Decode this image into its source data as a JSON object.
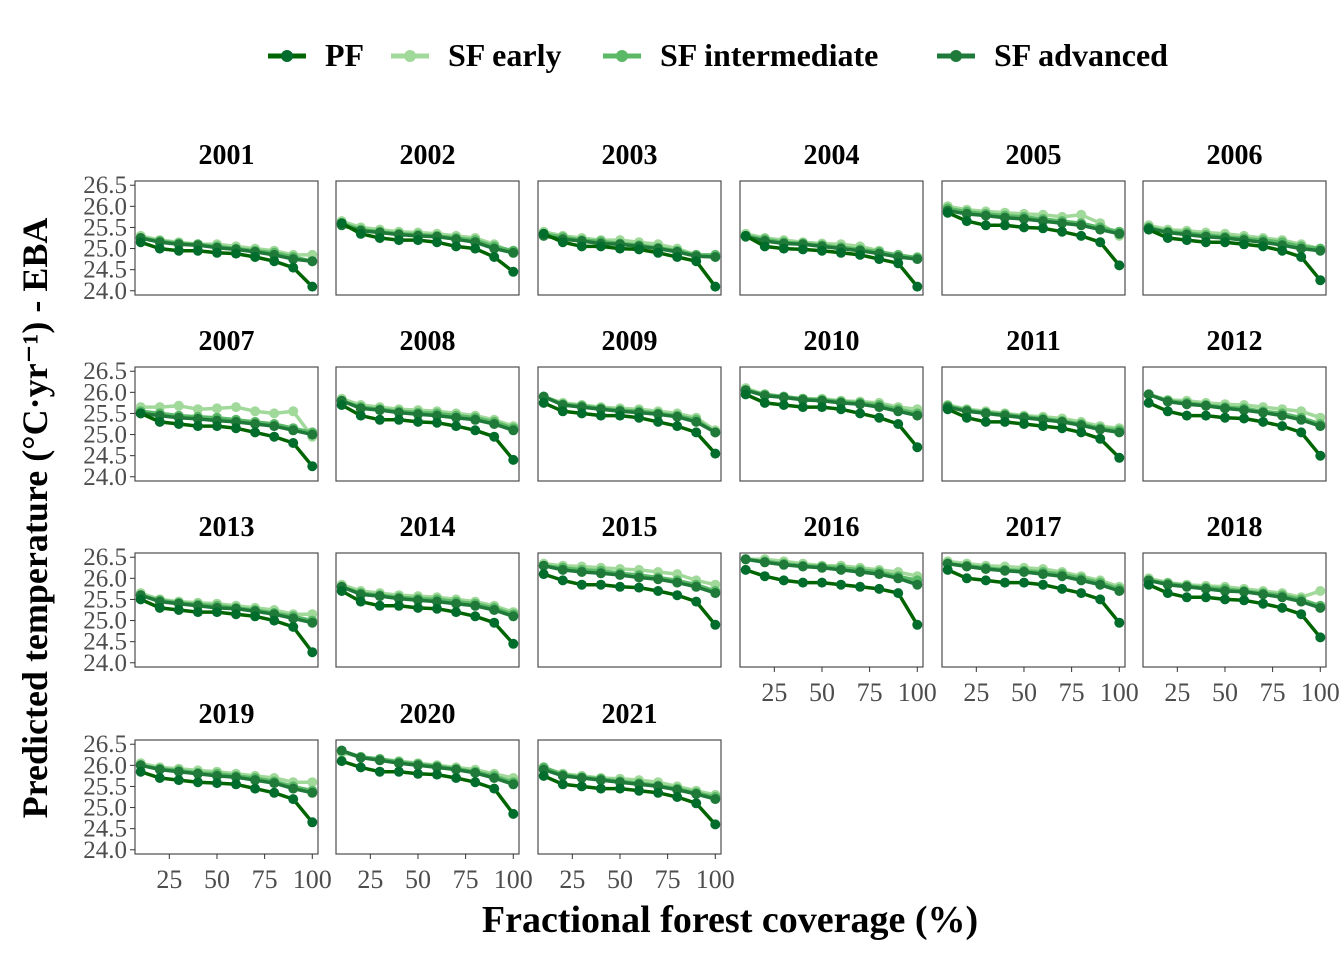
{
  "chart_data": {
    "type": "line",
    "xlabel": "Fractional forest coverage (%)",
    "ylabel": "Predicted temperature (°C·yr⁻¹) - EBA",
    "xlim": [
      7,
      103
    ],
    "ylim": [
      23.9,
      26.6
    ],
    "x_ticks": [
      25,
      50,
      75,
      100
    ],
    "y_ticks": [
      "24.0",
      "24.5",
      "25.0",
      "25.5",
      "26.0",
      "26.5"
    ],
    "grid": false,
    "legend_position": "top",
    "x": [
      10,
      20,
      30,
      40,
      50,
      60,
      70,
      80,
      90,
      100
    ],
    "series": [
      {
        "name": "PF",
        "color": "#006d2c",
        "line_color": "#006400",
        "key": "pf"
      },
      {
        "name": "SF early",
        "color": "#a1d99b",
        "line_color": "#a1d99b",
        "key": "early"
      },
      {
        "name": "SF intermediate",
        "color": "#5ab867",
        "line_color": "#5ab867",
        "key": "inter"
      },
      {
        "name": "SF advanced",
        "color": "#1f7a3a",
        "line_color": "#1f7a3a",
        "key": "adv"
      }
    ],
    "panels": [
      {
        "year": "2001",
        "pf": [
          25.15,
          25.0,
          24.95,
          24.95,
          24.9,
          24.88,
          24.8,
          24.7,
          24.55,
          24.1
        ],
        "early": [
          25.3,
          25.2,
          25.15,
          25.1,
          25.1,
          25.05,
          25.0,
          24.95,
          24.85,
          24.85
        ],
        "inter": [
          25.25,
          25.18,
          25.12,
          25.1,
          25.05,
          25.0,
          24.95,
          24.9,
          24.8,
          24.7
        ],
        "adv": [
          25.25,
          25.15,
          25.1,
          25.08,
          25.02,
          24.98,
          24.92,
          24.85,
          24.75,
          24.7
        ]
      },
      {
        "year": "2002",
        "pf": [
          25.6,
          25.35,
          25.25,
          25.2,
          25.2,
          25.15,
          25.05,
          25.0,
          24.8,
          24.45
        ],
        "early": [
          25.65,
          25.5,
          25.45,
          25.4,
          25.38,
          25.35,
          25.3,
          25.25,
          25.1,
          24.9
        ],
        "inter": [
          25.6,
          25.45,
          25.4,
          25.35,
          25.33,
          25.3,
          25.25,
          25.2,
          25.05,
          24.95
        ],
        "adv": [
          25.55,
          25.42,
          25.38,
          25.33,
          25.3,
          25.28,
          25.22,
          25.15,
          25.0,
          24.9
        ]
      },
      {
        "year": "2003",
        "pf": [
          25.35,
          25.15,
          25.05,
          25.05,
          25.0,
          24.98,
          24.9,
          24.8,
          24.7,
          24.1
        ],
        "early": [
          25.4,
          25.3,
          25.25,
          25.2,
          25.2,
          25.15,
          25.1,
          25.0,
          24.85,
          24.8
        ],
        "inter": [
          25.35,
          25.27,
          25.2,
          25.17,
          25.12,
          25.08,
          25.02,
          24.95,
          24.85,
          24.85
        ],
        "adv": [
          25.3,
          25.22,
          25.18,
          25.12,
          25.1,
          25.05,
          25.0,
          24.92,
          24.82,
          24.8
        ]
      },
      {
        "year": "2004",
        "pf": [
          25.3,
          25.05,
          25.0,
          24.98,
          24.95,
          24.9,
          24.85,
          24.75,
          24.65,
          24.1
        ],
        "early": [
          25.35,
          25.25,
          25.2,
          25.15,
          25.12,
          25.1,
          25.05,
          24.95,
          24.8,
          24.8
        ],
        "inter": [
          25.3,
          25.22,
          25.15,
          25.12,
          25.08,
          25.03,
          24.98,
          24.92,
          24.85,
          24.78
        ],
        "adv": [
          25.28,
          25.18,
          25.12,
          25.1,
          25.05,
          25.0,
          24.95,
          24.88,
          24.8,
          24.75
        ]
      },
      {
        "year": "2005",
        "pf": [
          25.85,
          25.65,
          25.55,
          25.55,
          25.5,
          25.48,
          25.4,
          25.3,
          25.15,
          24.6
        ],
        "early": [
          26.0,
          25.92,
          25.88,
          25.85,
          25.82,
          25.8,
          25.75,
          25.8,
          25.6,
          25.3
        ],
        "inter": [
          25.95,
          25.87,
          25.82,
          25.78,
          25.75,
          25.7,
          25.65,
          25.6,
          25.5,
          25.4
        ],
        "adv": [
          25.9,
          25.82,
          25.78,
          25.73,
          25.7,
          25.65,
          25.6,
          25.55,
          25.45,
          25.35
        ]
      },
      {
        "year": "2006",
        "pf": [
          25.45,
          25.25,
          25.2,
          25.15,
          25.15,
          25.1,
          25.05,
          24.95,
          24.8,
          24.25
        ],
        "early": [
          25.55,
          25.45,
          25.42,
          25.38,
          25.35,
          25.3,
          25.25,
          25.2,
          25.1,
          25.0
        ],
        "inter": [
          25.5,
          25.4,
          25.37,
          25.32,
          25.28,
          25.24,
          25.2,
          25.15,
          25.05,
          25.0
        ],
        "adv": [
          25.48,
          25.38,
          25.33,
          25.28,
          25.25,
          25.2,
          25.15,
          25.08,
          25.0,
          24.95
        ]
      },
      {
        "year": "2007",
        "pf": [
          25.5,
          25.3,
          25.25,
          25.2,
          25.2,
          25.15,
          25.05,
          24.95,
          24.8,
          24.25
        ],
        "early": [
          25.65,
          25.65,
          25.68,
          25.6,
          25.62,
          25.65,
          25.55,
          25.5,
          25.55,
          24.95
        ],
        "inter": [
          25.55,
          25.5,
          25.45,
          25.42,
          25.4,
          25.35,
          25.3,
          25.25,
          25.15,
          25.05
        ],
        "adv": [
          25.5,
          25.45,
          25.4,
          25.37,
          25.33,
          25.3,
          25.25,
          25.2,
          25.1,
          25.0
        ]
      },
      {
        "year": "2008",
        "pf": [
          25.7,
          25.45,
          25.35,
          25.35,
          25.3,
          25.28,
          25.2,
          25.1,
          24.95,
          24.4
        ],
        "early": [
          25.85,
          25.7,
          25.65,
          25.6,
          25.58,
          25.55,
          25.5,
          25.45,
          25.35,
          25.2
        ],
        "inter": [
          25.8,
          25.65,
          25.6,
          25.55,
          25.52,
          25.5,
          25.45,
          25.4,
          25.3,
          25.15
        ],
        "adv": [
          25.8,
          25.62,
          25.58,
          25.52,
          25.48,
          25.45,
          25.4,
          25.35,
          25.25,
          25.1
        ]
      },
      {
        "year": "2009",
        "pf": [
          25.75,
          25.55,
          25.5,
          25.45,
          25.45,
          25.4,
          25.3,
          25.2,
          25.05,
          24.55
        ],
        "early": [
          25.9,
          25.75,
          25.7,
          25.65,
          25.62,
          25.6,
          25.55,
          25.5,
          25.4,
          25.1
        ],
        "inter": [
          25.9,
          25.72,
          25.68,
          25.62,
          25.58,
          25.55,
          25.5,
          25.45,
          25.35,
          25.05
        ],
        "adv": [
          25.9,
          25.7,
          25.65,
          25.6,
          25.55,
          25.52,
          25.48,
          25.42,
          25.3,
          25.05
        ]
      },
      {
        "year": "2010",
        "pf": [
          25.95,
          25.75,
          25.7,
          25.65,
          25.65,
          25.6,
          25.5,
          25.4,
          25.25,
          24.7
        ],
        "early": [
          26.1,
          25.95,
          25.9,
          25.85,
          25.85,
          25.8,
          25.78,
          25.75,
          25.65,
          25.6
        ],
        "inter": [
          26.05,
          25.95,
          25.9,
          25.85,
          25.82,
          25.78,
          25.75,
          25.7,
          25.6,
          25.5
        ],
        "adv": [
          26.05,
          25.92,
          25.88,
          25.82,
          25.8,
          25.75,
          25.72,
          25.65,
          25.55,
          25.45
        ]
      },
      {
        "year": "2011",
        "pf": [
          25.6,
          25.4,
          25.3,
          25.3,
          25.25,
          25.2,
          25.15,
          25.05,
          24.9,
          24.45
        ],
        "early": [
          25.7,
          25.6,
          25.55,
          25.5,
          25.45,
          25.42,
          25.38,
          25.3,
          25.2,
          25.15
        ],
        "inter": [
          25.68,
          25.58,
          25.52,
          25.48,
          25.42,
          25.38,
          25.32,
          25.25,
          25.15,
          25.1
        ],
        "adv": [
          25.65,
          25.55,
          25.5,
          25.45,
          25.4,
          25.35,
          25.3,
          25.22,
          25.12,
          25.05
        ]
      },
      {
        "year": "2012",
        "pf": [
          25.75,
          25.55,
          25.45,
          25.45,
          25.4,
          25.38,
          25.3,
          25.2,
          25.05,
          24.5
        ],
        "early": [
          25.95,
          25.82,
          25.8,
          25.75,
          25.72,
          25.7,
          25.65,
          25.6,
          25.55,
          25.4
        ],
        "inter": [
          25.95,
          25.8,
          25.75,
          25.7,
          25.65,
          25.62,
          25.55,
          25.5,
          25.4,
          25.25
        ],
        "adv": [
          25.95,
          25.78,
          25.72,
          25.68,
          25.62,
          25.58,
          25.52,
          25.45,
          25.35,
          25.2
        ]
      },
      {
        "year": "2013",
        "pf": [
          25.5,
          25.3,
          25.25,
          25.2,
          25.2,
          25.15,
          25.1,
          25.0,
          24.85,
          24.25
        ],
        "early": [
          25.65,
          25.5,
          25.45,
          25.42,
          25.4,
          25.35,
          25.3,
          25.25,
          25.15,
          25.15
        ],
        "inter": [
          25.6,
          25.48,
          25.42,
          25.38,
          25.35,
          25.3,
          25.25,
          25.18,
          25.1,
          25.0
        ],
        "adv": [
          25.6,
          25.45,
          25.4,
          25.35,
          25.3,
          25.28,
          25.22,
          25.15,
          25.05,
          24.95
        ]
      },
      {
        "year": "2014",
        "pf": [
          25.7,
          25.45,
          25.35,
          25.35,
          25.3,
          25.28,
          25.2,
          25.1,
          24.95,
          24.45
        ],
        "early": [
          25.85,
          25.7,
          25.65,
          25.6,
          25.58,
          25.55,
          25.5,
          25.45,
          25.35,
          25.2
        ],
        "inter": [
          25.8,
          25.65,
          25.6,
          25.55,
          25.52,
          25.5,
          25.45,
          25.4,
          25.3,
          25.15
        ],
        "adv": [
          25.8,
          25.62,
          25.58,
          25.52,
          25.48,
          25.45,
          25.4,
          25.35,
          25.25,
          25.1
        ]
      },
      {
        "year": "2015",
        "pf": [
          26.1,
          25.95,
          25.85,
          25.85,
          25.8,
          25.78,
          25.7,
          25.6,
          25.45,
          24.9
        ],
        "early": [
          26.35,
          26.3,
          26.28,
          26.25,
          26.22,
          26.2,
          26.15,
          26.1,
          25.95,
          25.85
        ],
        "inter": [
          26.3,
          26.25,
          26.2,
          26.18,
          26.12,
          26.08,
          26.02,
          25.95,
          25.85,
          25.7
        ],
        "adv": [
          26.3,
          26.2,
          26.15,
          26.12,
          26.08,
          26.02,
          25.98,
          25.9,
          25.8,
          25.65
        ]
      },
      {
        "year": "2016",
        "pf": [
          26.2,
          26.05,
          25.95,
          25.9,
          25.9,
          25.85,
          25.8,
          25.75,
          25.65,
          24.9
        ],
        "early": [
          26.45,
          26.45,
          26.4,
          26.35,
          26.3,
          26.3,
          26.25,
          26.2,
          26.15,
          26.05
        ],
        "inter": [
          26.45,
          26.4,
          26.35,
          26.3,
          26.28,
          26.25,
          26.2,
          26.15,
          26.05,
          25.95
        ],
        "adv": [
          26.45,
          26.38,
          26.32,
          26.28,
          26.25,
          26.2,
          26.15,
          26.1,
          26.0,
          25.85
        ]
      },
      {
        "year": "2017",
        "pf": [
          26.2,
          26.0,
          25.95,
          25.9,
          25.9,
          25.85,
          25.75,
          25.65,
          25.5,
          24.95
        ],
        "early": [
          26.4,
          26.35,
          26.3,
          26.28,
          26.25,
          26.22,
          26.15,
          26.05,
          25.95,
          25.8
        ],
        "inter": [
          26.35,
          26.3,
          26.25,
          26.2,
          26.18,
          26.15,
          26.1,
          26.0,
          25.9,
          25.75
        ],
        "adv": [
          26.35,
          26.28,
          26.22,
          26.18,
          26.15,
          26.1,
          26.05,
          25.95,
          25.85,
          25.7
        ]
      },
      {
        "year": "2018",
        "pf": [
          25.85,
          25.65,
          25.55,
          25.55,
          25.5,
          25.48,
          25.4,
          25.3,
          25.15,
          24.6
        ],
        "early": [
          26.0,
          25.9,
          25.85,
          25.82,
          25.8,
          25.75,
          25.7,
          25.65,
          25.55,
          25.7
        ],
        "inter": [
          25.95,
          25.88,
          25.82,
          25.78,
          25.75,
          25.7,
          25.65,
          25.6,
          25.5,
          25.35
        ],
        "adv": [
          25.95,
          25.85,
          25.8,
          25.75,
          25.7,
          25.68,
          25.62,
          25.55,
          25.45,
          25.3
        ]
      },
      {
        "year": "2019",
        "pf": [
          25.85,
          25.7,
          25.65,
          25.6,
          25.58,
          25.55,
          25.45,
          25.35,
          25.2,
          24.65
        ],
        "early": [
          26.05,
          25.95,
          25.92,
          25.88,
          25.85,
          25.8,
          25.75,
          25.7,
          25.6,
          25.6
        ],
        "inter": [
          26.0,
          25.92,
          25.88,
          25.82,
          25.8,
          25.75,
          25.7,
          25.62,
          25.5,
          25.4
        ],
        "adv": [
          26.0,
          25.9,
          25.85,
          25.8,
          25.75,
          25.72,
          25.65,
          25.58,
          25.45,
          25.35
        ]
      },
      {
        "year": "2020",
        "pf": [
          26.1,
          25.95,
          25.85,
          25.85,
          25.8,
          25.78,
          25.7,
          25.6,
          25.45,
          24.85
        ],
        "early": [
          26.3,
          26.2,
          26.15,
          26.1,
          26.05,
          26.0,
          25.95,
          25.9,
          25.8,
          25.7
        ],
        "inter": [
          26.35,
          26.2,
          26.15,
          26.08,
          26.03,
          25.98,
          25.92,
          25.85,
          25.75,
          25.6
        ],
        "adv": [
          26.35,
          26.18,
          26.12,
          26.05,
          26.0,
          25.95,
          25.9,
          25.82,
          25.7,
          25.55
        ]
      },
      {
        "year": "2021",
        "pf": [
          25.75,
          25.55,
          25.5,
          25.45,
          25.45,
          25.4,
          25.35,
          25.25,
          25.1,
          24.6
        ],
        "early": [
          25.95,
          25.8,
          25.75,
          25.7,
          25.68,
          25.65,
          25.6,
          25.5,
          25.4,
          25.3
        ],
        "inter": [
          25.95,
          25.78,
          25.72,
          25.68,
          25.62,
          25.58,
          25.52,
          25.45,
          25.35,
          25.25
        ],
        "adv": [
          25.9,
          25.75,
          25.7,
          25.65,
          25.6,
          25.55,
          25.5,
          25.42,
          25.32,
          25.2
        ]
      }
    ]
  }
}
